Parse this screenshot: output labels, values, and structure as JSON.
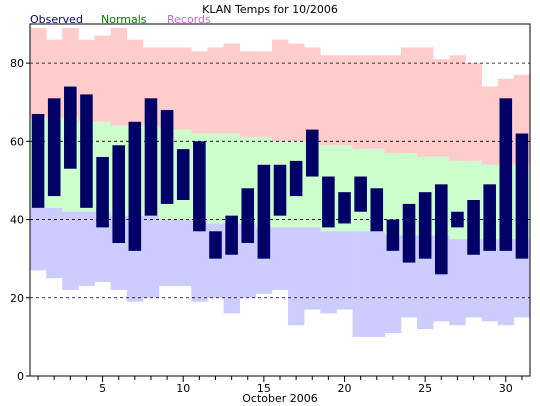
{
  "chart_data": {
    "type": "bar",
    "title": "KLAN Temps for 10/2006",
    "xlabel": "October 2006",
    "ylabel": "",
    "ylim": [
      0,
      90
    ],
    "xlim": [
      0.5,
      31.5
    ],
    "yticks": [
      0,
      20,
      40,
      60,
      80
    ],
    "xticks": [
      5,
      10,
      15,
      20,
      25,
      30
    ],
    "grid": "dashed horizontal at 20, 40, 60, 80",
    "legend": {
      "placement": "top-left",
      "entries": [
        {
          "label": "Observed",
          "color": "#000066"
        },
        {
          "label": "Normals",
          "color": "#008000"
        },
        {
          "label": "Records",
          "color": "#cc66cc"
        }
      ]
    },
    "colors": {
      "record_band": "#ffcccc",
      "normal_band": "#ccffcc",
      "record_low_band": "#ccccff",
      "observed_bar": "#000066"
    },
    "days": [
      1,
      2,
      3,
      4,
      5,
      6,
      7,
      8,
      9,
      10,
      11,
      12,
      13,
      14,
      15,
      16,
      17,
      18,
      19,
      20,
      21,
      22,
      23,
      24,
      25,
      26,
      27,
      28,
      29,
      30,
      31
    ],
    "series": [
      {
        "name": "Records",
        "role": "record_high",
        "values": [
          89,
          86,
          89,
          86,
          87,
          89,
          86,
          84,
          84,
          84,
          83,
          84,
          85,
          83,
          83,
          86,
          85,
          84,
          82,
          82,
          82,
          82,
          82,
          84,
          84,
          81,
          82,
          80,
          74,
          76,
          77
        ]
      },
      {
        "name": "Normals",
        "role": "normal_high",
        "values": [
          66,
          66,
          66,
          65,
          65,
          64,
          64,
          64,
          63,
          63,
          62,
          62,
          62,
          61,
          61,
          60,
          60,
          60,
          59,
          59,
          58,
          58,
          57,
          57,
          56,
          56,
          55,
          55,
          54,
          54,
          54
        ]
      },
      {
        "name": "Normals",
        "role": "normal_low",
        "values": [
          43,
          43,
          42,
          42,
          42,
          41,
          41,
          41,
          40,
          40,
          40,
          39,
          39,
          39,
          38,
          38,
          38,
          38,
          37,
          37,
          37,
          37,
          36,
          36,
          36,
          36,
          35,
          35,
          35,
          35,
          35
        ]
      },
      {
        "name": "Records",
        "role": "record_low",
        "values": [
          27,
          25,
          22,
          23,
          24,
          22,
          19,
          20,
          23,
          23,
          19,
          20,
          16,
          20,
          21,
          22,
          13,
          17,
          16,
          17,
          10,
          10,
          11,
          15,
          12,
          14,
          13,
          15,
          14,
          13,
          15
        ]
      },
      {
        "name": "Observed",
        "role": "observed_high",
        "values": [
          67,
          71,
          74,
          72,
          56,
          59,
          65,
          71,
          68,
          58,
          60,
          37,
          41,
          48,
          54,
          54,
          55,
          63,
          51,
          47,
          51,
          48,
          40,
          44,
          47,
          49,
          42,
          45,
          49,
          71,
          62
        ]
      },
      {
        "name": "Observed",
        "role": "observed_low",
        "values": [
          43,
          46,
          53,
          43,
          38,
          34,
          32,
          41,
          44,
          45,
          37,
          30,
          31,
          34,
          30,
          41,
          46,
          51,
          38,
          39,
          42,
          37,
          32,
          29,
          30,
          26,
          38,
          31,
          32,
          32,
          30
        ]
      }
    ]
  }
}
